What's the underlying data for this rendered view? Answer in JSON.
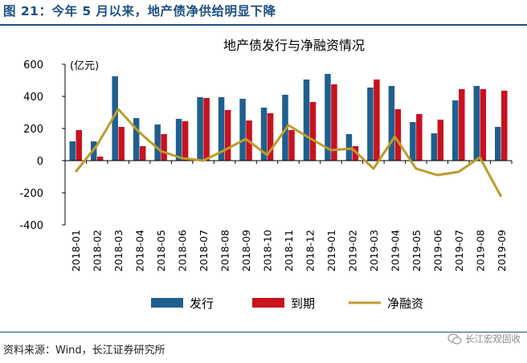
{
  "figure": {
    "title": "图 21：今年 5 月以来，地产债净供给明显下降",
    "source": "资料来源：Wind，长江证券研究所",
    "watermark": "长江宏观固收"
  },
  "colors": {
    "issue": "#1f5f8f",
    "maturity": "#c8121e",
    "net": "#bd9b2c",
    "frame": "#1c4f82"
  },
  "chart_data": {
    "type": "bar",
    "title": "地产债发行与净融资情况",
    "unit_label": "(亿元)",
    "categories": [
      "2018-01",
      "2018-02",
      "2018-03",
      "2018-04",
      "2018-05",
      "2018-06",
      "2018-07",
      "2018-08",
      "2018-09",
      "2018-10",
      "2018-11",
      "2018-12",
      "2019-01",
      "2019-02",
      "2019-03",
      "2019-04",
      "2019-05",
      "2019-06",
      "2019-07",
      "2019-08",
      "2019-09"
    ],
    "series": [
      {
        "name": "发行",
        "type": "bar",
        "values": [
          120,
          120,
          525,
          265,
          225,
          260,
          395,
          395,
          385,
          330,
          410,
          505,
          540,
          165,
          455,
          465,
          240,
          170,
          375,
          465,
          210
        ]
      },
      {
        "name": "到期",
        "type": "bar",
        "values": [
          190,
          25,
          210,
          90,
          165,
          245,
          390,
          315,
          250,
          295,
          190,
          365,
          475,
          90,
          505,
          320,
          290,
          255,
          445,
          445,
          435
        ]
      },
      {
        "name": "净融资",
        "type": "line",
        "values": [
          -70,
          95,
          320,
          175,
          60,
          15,
          0,
          65,
          135,
          35,
          220,
          140,
          65,
          75,
          -50,
          150,
          -50,
          -90,
          -70,
          20,
          -225
        ]
      }
    ],
    "ylim": [
      -400,
      600
    ],
    "yticks": [
      -400,
      -200,
      0,
      200,
      400,
      600
    ],
    "grid": false,
    "legend_position": "bottom"
  }
}
